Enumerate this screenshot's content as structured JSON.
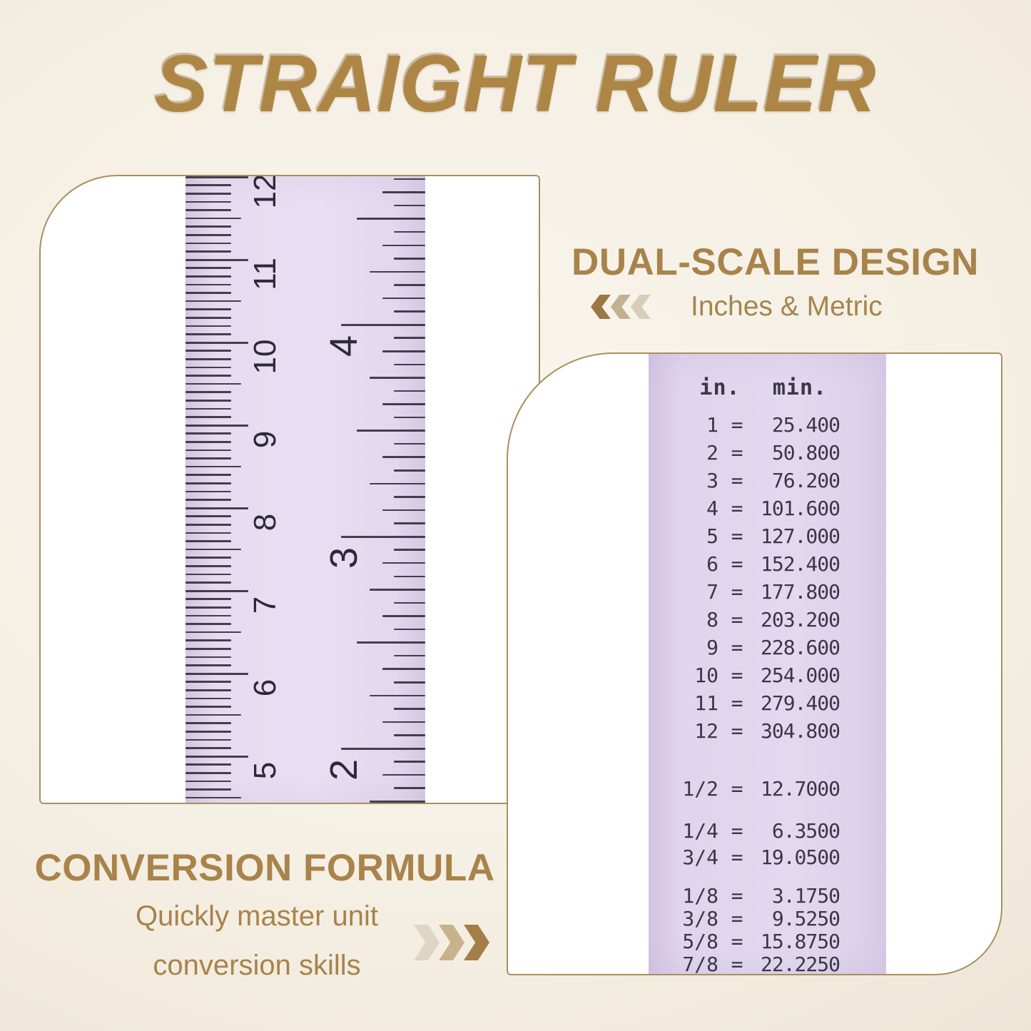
{
  "title": "STRAIGHT RULER",
  "theme": {
    "accent_gold": "#a8834a",
    "title_gold": "#ad8646",
    "border_tan": "#a8905e",
    "ruler_lavender": "#e6dcf1",
    "table_lavender": "#e0d4ee",
    "ink": "#2e2936",
    "table_ink": "#3b3644",
    "chevrons_left_colors": [
      "#9a7843",
      "#c3b091",
      "#d7cdbb"
    ],
    "chevrons_right_colors": [
      "#ded5c4",
      "#c8b28c",
      "#a47e47"
    ]
  },
  "dual_scale": {
    "heading": "DUAL-SCALE DESIGN",
    "subheading": "Inches & Metric"
  },
  "conversion": {
    "heading": "CONVERSION FORMULA",
    "line1": "Quickly master unit",
    "line2": "conversion skills"
  },
  "left_panel": {
    "ruler": {
      "cm_numbers": [
        5,
        6,
        7,
        8,
        9,
        10,
        11,
        12
      ],
      "inch_numbers": [
        2,
        3,
        4
      ]
    }
  },
  "conversion_table": {
    "col_headers": [
      "in.",
      "min."
    ],
    "eq": "=",
    "groups": [
      {
        "rows": [
          [
            "1",
            "25.400"
          ],
          [
            "2",
            "50.800"
          ],
          [
            "3",
            "76.200"
          ],
          [
            "4",
            "101.600"
          ],
          [
            "5",
            "127.000"
          ],
          [
            "6",
            "152.400"
          ],
          [
            "7",
            "177.800"
          ],
          [
            "8",
            "203.200"
          ],
          [
            "9",
            "228.600"
          ],
          [
            "10",
            "254.000"
          ],
          [
            "11",
            "279.400"
          ],
          [
            "12",
            "304.800"
          ]
        ]
      },
      {
        "rows": [
          [
            "1/2",
            "12.7000"
          ]
        ]
      },
      {
        "rows": [
          [
            "1/4",
            "6.3500"
          ],
          [
            "3/4",
            "19.0500"
          ]
        ]
      },
      {
        "rows": [
          [
            "1/8",
            "3.1750"
          ],
          [
            "3/8",
            "9.5250"
          ],
          [
            "5/8",
            "15.8750"
          ],
          [
            "7/8",
            "22.2250"
          ]
        ]
      }
    ]
  }
}
